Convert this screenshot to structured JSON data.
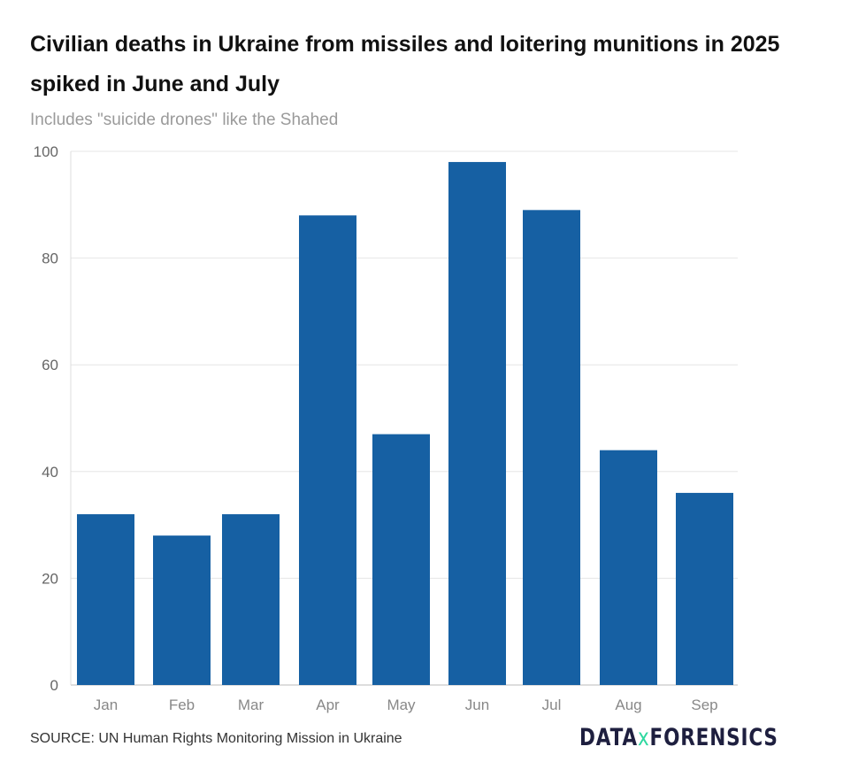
{
  "chart_data": {
    "type": "bar",
    "title": "Civilian deaths in Ukraine from missiles and loitering munitions in 2025 spiked in June and July",
    "subtitle": "Includes \"suicide drones\" like the Shahed",
    "categories": [
      "Jan",
      "Feb",
      "Mar",
      "Apr",
      "May",
      "Jun",
      "Jul",
      "Aug",
      "Sep"
    ],
    "values": [
      32,
      28,
      32,
      88,
      47,
      98,
      89,
      44,
      36
    ],
    "ylim": [
      0,
      100
    ],
    "yticks": [
      0,
      20,
      40,
      60,
      80,
      100
    ],
    "grid": true,
    "bar_color": "#1660a3",
    "xlabel": "",
    "ylabel": ""
  },
  "source": "SOURCE: UN Human Rights Monitoring Mission in Ukraine",
  "logo": {
    "part1": "DATA",
    "part2": "x",
    "part3": "FORENSICS"
  }
}
